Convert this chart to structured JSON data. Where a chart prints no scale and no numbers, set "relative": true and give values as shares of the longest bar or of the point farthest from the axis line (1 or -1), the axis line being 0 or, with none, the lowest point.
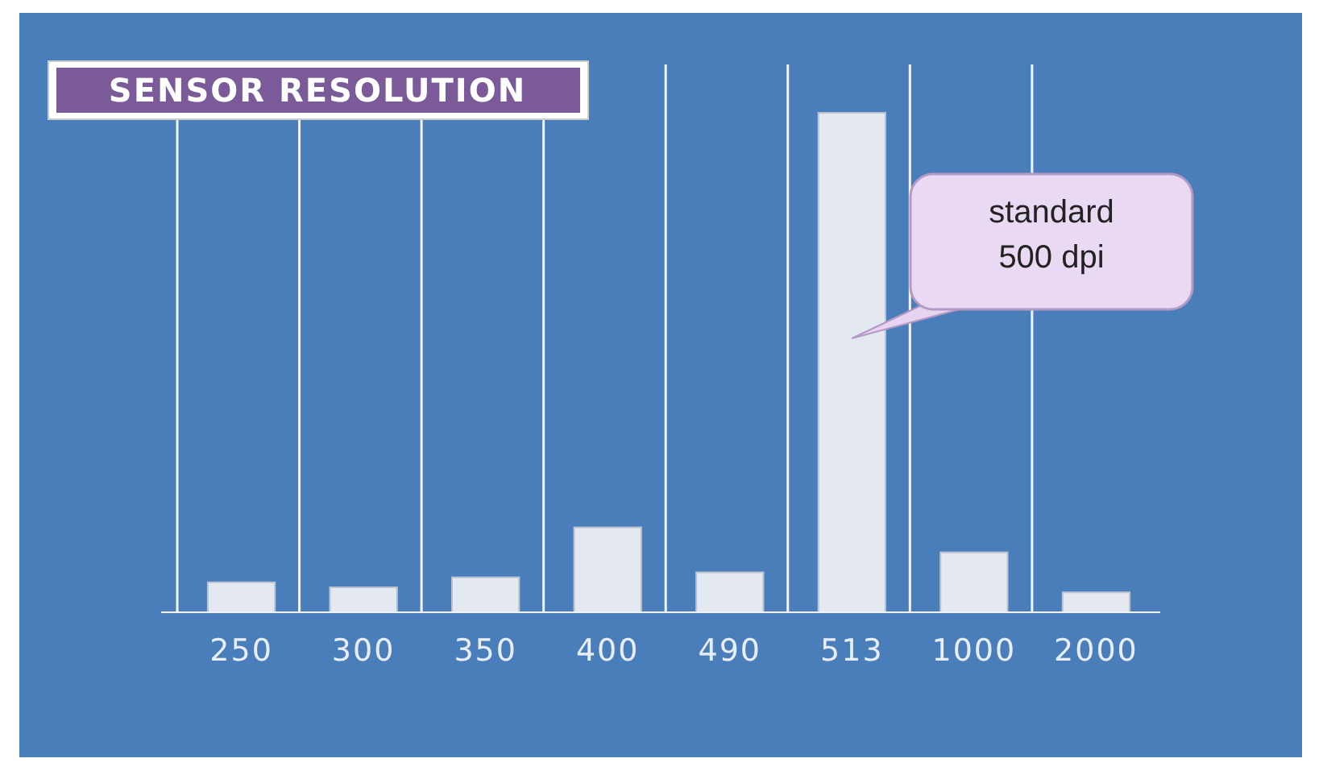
{
  "chart_data": {
    "type": "bar",
    "title": "SENSOR RESOLUTION",
    "relative": true,
    "grid": "x",
    "categories": [
      "250",
      "300",
      "350",
      "400",
      "490",
      "513",
      "1000",
      "2000"
    ],
    "values": [
      0.06,
      0.05,
      0.07,
      0.17,
      0.08,
      1,
      0.12,
      0.04
    ],
    "color": "#e4e9f1",
    "annotations": [
      "standard\n500 dpi"
    ]
  }
}
